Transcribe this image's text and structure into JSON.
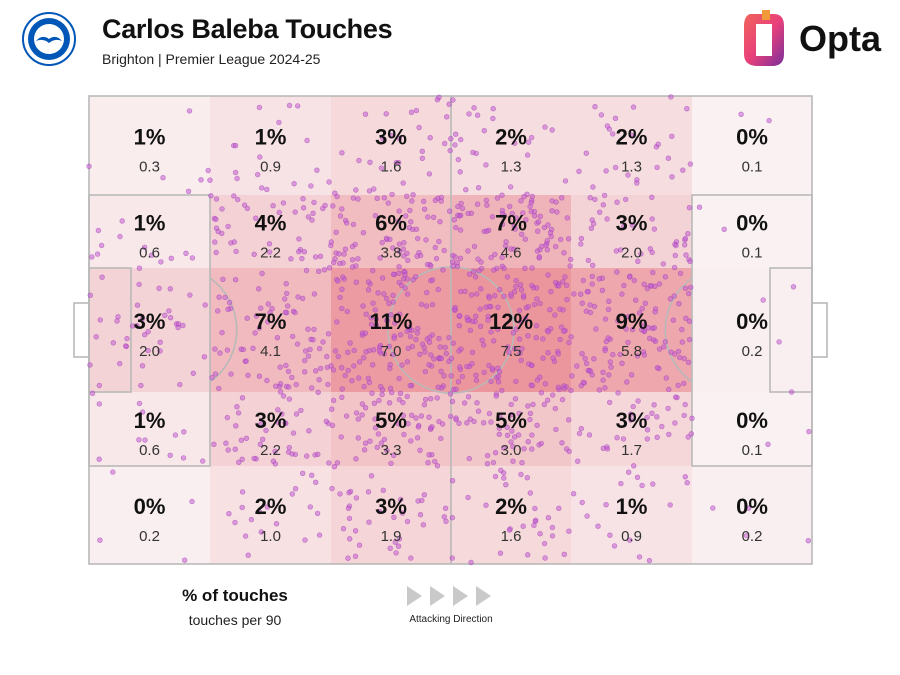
{
  "title": "Carlos Baleba Touches",
  "subtitle": "Brighton | Premier League 2024-25",
  "brand": {
    "name": "Opta",
    "gradient_start": "#e9407a",
    "gradient_end": "#7a2f9c"
  },
  "club_badge": {
    "icon": "brighton-seagull-badge",
    "color": "#0057b8"
  },
  "legend": {
    "title": "% of touches",
    "subtitle": "touches per 90"
  },
  "direction_label": "Attacking Direction",
  "colors": {
    "zone_max": "#e88f95",
    "pitch_line": "#b9b9b9",
    "dot": "#c25bd1"
  },
  "chart_data": {
    "type": "heatmap",
    "title": "Carlos Baleba Touches",
    "columns": [
      "1",
      "2",
      "3",
      "4",
      "5",
      "6"
    ],
    "rows": [
      "1",
      "2",
      "3",
      "4",
      "5"
    ],
    "percent": [
      [
        "1%",
        "1%",
        "3%",
        "2%",
        "2%",
        "0%"
      ],
      [
        "1%",
        "4%",
        "6%",
        "7%",
        "3%",
        "0%"
      ],
      [
        "3%",
        "7%",
        "11%",
        "12%",
        "9%",
        "0%"
      ],
      [
        "1%",
        "3%",
        "5%",
        "5%",
        "3%",
        "0%"
      ],
      [
        "0%",
        "2%",
        "3%",
        "2%",
        "1%",
        "0%"
      ]
    ],
    "per90": [
      [
        "0.3",
        "0.9",
        "1.6",
        "1.3",
        "1.3",
        "0.1"
      ],
      [
        "0.6",
        "2.2",
        "3.8",
        "4.6",
        "2.0",
        "0.1"
      ],
      [
        "2.0",
        "4.1",
        "7.0",
        "7.5",
        "5.8",
        "0.2"
      ],
      [
        "0.6",
        "2.2",
        "3.3",
        "3.0",
        "1.7",
        "0.1"
      ],
      [
        "0.2",
        "1.0",
        "1.9",
        "1.6",
        "0.9",
        "0.2"
      ]
    ]
  }
}
